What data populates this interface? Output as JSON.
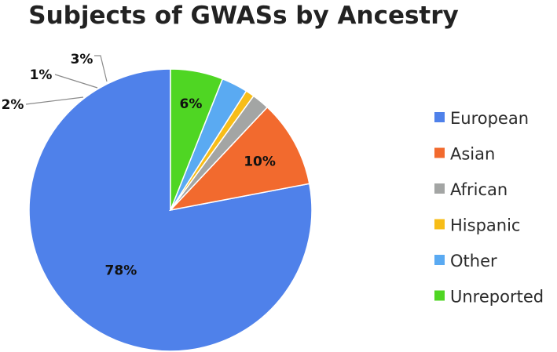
{
  "chart_data": {
    "type": "pie",
    "title": "Subjects of GWASs by Ancestry",
    "series": [
      {
        "name": "European",
        "value": 78,
        "label": "78%",
        "color": "#4f81ea"
      },
      {
        "name": "Asian",
        "value": 10,
        "label": "10%",
        "color": "#f26a2e"
      },
      {
        "name": "African",
        "value": 2,
        "label": "2%",
        "color": "#a3a5a4"
      },
      {
        "name": "Hispanic",
        "value": 1,
        "label": "1%",
        "color": "#f7bd18"
      },
      {
        "name": "Other",
        "value": 3,
        "label": "3%",
        "color": "#5aaaf2"
      },
      {
        "name": "Unreported",
        "value": 6,
        "label": "6%",
        "color": "#4fd623"
      }
    ],
    "legend_position": "right",
    "start_angle": "12 o'clock",
    "direction": "counter-clockwise"
  }
}
